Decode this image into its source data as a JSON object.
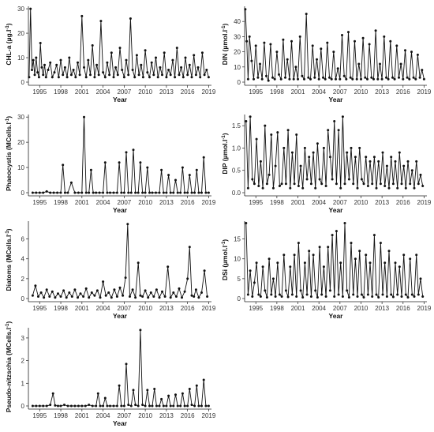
{
  "chart_data": [
    {
      "type": "line",
      "panel": "CHL-a",
      "ylabel": "CHL-a (µg.l",
      "ylabel_sup": "-1",
      "ylabel_end": ")",
      "xlabel": "Year",
      "xticks": [
        "1995",
        "1998",
        "2001",
        "2004",
        "2007",
        "2010",
        "2013",
        "2016",
        "2019"
      ],
      "yticks": [
        "0",
        "10",
        "20",
        "30"
      ],
      "ylim": [
        0,
        31
      ],
      "xlim": [
        1993.4,
        2019.4
      ],
      "x": [
        1993.5,
        1993.7,
        1993.9,
        1994.1,
        1994.3,
        1994.5,
        1994.7,
        1994.9,
        1995.1,
        1995.3,
        1995.5,
        1995.7,
        1995.9,
        1996.2,
        1996.5,
        1996.8,
        1997.1,
        1997.4,
        1997.7,
        1998.0,
        1998.3,
        1998.6,
        1998.9,
        1999.2,
        1999.5,
        1999.8,
        2000.1,
        2000.4,
        2000.7,
        2001.0,
        2001.3,
        2001.6,
        2001.9,
        2002.2,
        2002.5,
        2002.8,
        2003.1,
        2003.4,
        2003.7,
        2004.0,
        2004.3,
        2004.6,
        2004.9,
        2005.2,
        2005.5,
        2005.8,
        2006.1,
        2006.4,
        2006.7,
        2007.0,
        2007.3,
        2007.6,
        2007.9,
        2008.2,
        2008.5,
        2008.8,
        2009.1,
        2009.4,
        2009.7,
        2010.0,
        2010.3,
        2010.6,
        2010.9,
        2011.2,
        2011.5,
        2011.8,
        2012.1,
        2012.4,
        2012.7,
        2013.0,
        2013.3,
        2013.6,
        2013.9,
        2014.2,
        2014.5,
        2014.8,
        2015.1,
        2015.4,
        2015.7,
        2016.0,
        2016.3,
        2016.6,
        2016.9,
        2017.2,
        2017.5,
        2017.8,
        2018.1,
        2018.4,
        2018.7,
        2019.0
      ],
      "y": [
        2,
        30,
        5,
        9,
        3,
        10,
        4,
        2,
        16,
        6,
        3,
        7,
        2,
        5,
        8,
        2,
        4,
        7,
        2,
        9,
        3,
        6,
        2,
        10,
        3,
        5,
        2,
        8,
        3,
        27,
        6,
        2,
        9,
        3,
        15,
        2,
        7,
        3,
        25,
        4,
        2,
        8,
        3,
        12,
        2,
        6,
        3,
        14,
        5,
        2,
        9,
        3,
        26,
        5,
        2,
        11,
        3,
        7,
        2,
        13,
        4,
        2,
        8,
        3,
        10,
        2,
        6,
        3,
        12,
        2,
        5,
        3,
        9,
        2,
        14,
        3,
        6,
        2,
        10,
        3,
        7,
        2,
        11,
        3,
        6,
        2,
        12,
        3,
        5,
        2
      ]
    },
    {
      "type": "line",
      "panel": "DIN",
      "ylabel": "DIN (µmol.l",
      "ylabel_sup": "-1",
      "ylabel_end": ")",
      "xlabel": "Year",
      "xticks": [
        "1995",
        "1998",
        "2001",
        "2004",
        "2007",
        "2010",
        "2013",
        "2016",
        "2019"
      ],
      "yticks": [
        "0",
        "10",
        "20",
        "30",
        "40"
      ],
      "ylim": [
        0,
        50
      ],
      "xlim": [
        1993.4,
        2019.4
      ],
      "x": [
        1993.5,
        1993.7,
        1993.9,
        1994.1,
        1994.4,
        1994.7,
        1995.0,
        1995.3,
        1995.6,
        1995.9,
        1996.2,
        1996.5,
        1996.8,
        1997.1,
        1997.4,
        1997.7,
        1998.0,
        1998.3,
        1998.6,
        1998.9,
        1999.2,
        1999.5,
        1999.8,
        2000.1,
        2000.4,
        2000.7,
        2001.0,
        2001.3,
        2001.6,
        2001.9,
        2002.2,
        2002.5,
        2002.8,
        2003.1,
        2003.4,
        2003.7,
        2004.0,
        2004.3,
        2004.6,
        2004.9,
        2005.2,
        2005.5,
        2005.8,
        2006.1,
        2006.4,
        2006.7,
        2007.0,
        2007.3,
        2007.6,
        2007.9,
        2008.2,
        2008.5,
        2008.8,
        2009.1,
        2009.4,
        2009.7,
        2010.0,
        2010.3,
        2010.6,
        2010.9,
        2011.2,
        2011.5,
        2011.8,
        2012.1,
        2012.4,
        2012.7,
        2013.0,
        2013.3,
        2013.6,
        2013.9,
        2014.2,
        2014.5,
        2014.8,
        2015.1,
        2015.4,
        2015.7,
        2016.0,
        2016.3,
        2016.6,
        2016.9,
        2017.2,
        2017.5,
        2017.8,
        2018.1,
        2018.4,
        2018.7,
        2019.0
      ],
      "y": [
        48,
        27,
        2,
        30,
        14,
        2,
        24,
        3,
        12,
        2,
        26,
        4,
        1,
        25,
        3,
        2,
        20,
        5,
        2,
        28,
        3,
        15,
        2,
        27,
        2,
        10,
        2,
        30,
        4,
        2,
        45,
        3,
        2,
        24,
        3,
        15,
        2,
        22,
        3,
        2,
        26,
        3,
        2,
        20,
        2,
        9,
        2,
        31,
        4,
        2,
        33,
        3,
        2,
        27,
        2,
        12,
        2,
        29,
        3,
        2,
        25,
        3,
        2,
        34,
        2,
        12,
        2,
        30,
        3,
        2,
        27,
        3,
        2,
        24,
        3,
        12,
        2,
        21,
        3,
        2,
        20,
        3,
        2,
        18,
        3,
        8,
        2
      ]
    },
    {
      "type": "line",
      "panel": "Phaeocystis",
      "ylabel": "Phaeocystis (MCells.l",
      "ylabel_sup": "-1",
      "ylabel_end": ")",
      "xlabel": "Year",
      "xticks": [
        "1995",
        "1998",
        "2001",
        "2004",
        "2007",
        "2010",
        "2013",
        "2016",
        "2019"
      ],
      "yticks": [
        "0",
        "10",
        "20",
        "30"
      ],
      "ylim": [
        0,
        31
      ],
      "xlim": [
        1993.4,
        2019.4
      ],
      "x": [
        1994.0,
        1994.5,
        1995.0,
        1995.5,
        1996.0,
        1996.5,
        1997.0,
        1997.5,
        1998.0,
        1998.3,
        1998.6,
        1999.0,
        1999.5,
        2000.0,
        2000.5,
        2001.0,
        2001.3,
        2001.6,
        2002.0,
        2002.3,
        2002.6,
        2003.0,
        2003.5,
        2004.0,
        2004.3,
        2004.6,
        2005.0,
        2005.5,
        2006.0,
        2006.3,
        2006.6,
        2007.0,
        2007.3,
        2007.6,
        2008.0,
        2008.3,
        2008.6,
        2009.0,
        2009.3,
        2009.6,
        2010.0,
        2010.3,
        2010.6,
        2011.0,
        2011.5,
        2012.0,
        2012.3,
        2012.6,
        2013.0,
        2013.3,
        2013.6,
        2014.0,
        2014.3,
        2014.6,
        2015.0,
        2015.3,
        2015.6,
        2016.0,
        2016.3,
        2016.6,
        2017.0,
        2017.3,
        2017.6,
        2018.0,
        2018.3,
        2018.6,
        2019.0
      ],
      "y": [
        0,
        0,
        0,
        0,
        0.5,
        0,
        0,
        0,
        0,
        11,
        0,
        0,
        4,
        0,
        0,
        0,
        30,
        0,
        0,
        9,
        0,
        0,
        0,
        0,
        12,
        0,
        0,
        0,
        0,
        12,
        0,
        0,
        16,
        0,
        0,
        17,
        0,
        0,
        12,
        0,
        0,
        10,
        0,
        0,
        0,
        0,
        9,
        0,
        0,
        7,
        0,
        0,
        5,
        0,
        0,
        10,
        0,
        0,
        7,
        0,
        0,
        9,
        0,
        0,
        14,
        0,
        0
      ]
    },
    {
      "type": "line",
      "panel": "DIP",
      "ylabel": "DIP (µmol.l",
      "ylabel_sup": "-1",
      "ylabel_end": ")",
      "xlabel": "Year",
      "xticks": [
        "1995",
        "1998",
        "2001",
        "2004",
        "2007",
        "2010",
        "2013",
        "2016",
        "2019"
      ],
      "yticks": [
        "0.0",
        "0.5",
        "1.0",
        "1.5"
      ],
      "ylim": [
        0,
        1.75
      ],
      "xlim": [
        1993.4,
        2019.4
      ],
      "x": [
        1993.6,
        1993.9,
        1994.2,
        1994.5,
        1994.8,
        1995.1,
        1995.4,
        1995.7,
        1996.0,
        1996.3,
        1996.6,
        1996.9,
        1997.2,
        1997.5,
        1997.8,
        1998.1,
        1998.4,
        1998.7,
        1999.0,
        1999.3,
        1999.6,
        1999.9,
        2000.2,
        2000.5,
        2000.8,
        2001.1,
        2001.4,
        2001.7,
        2002.0,
        2002.3,
        2002.6,
        2002.9,
        2003.2,
        2003.5,
        2003.8,
        2004.1,
        2004.4,
        2004.7,
        2005.0,
        2005.3,
        2005.6,
        2005.9,
        2006.2,
        2006.5,
        2006.8,
        2007.1,
        2007.4,
        2007.7,
        2008.0,
        2008.3,
        2008.6,
        2008.9,
        2009.2,
        2009.5,
        2009.8,
        2010.1,
        2010.4,
        2010.7,
        2011.0,
        2011.3,
        2011.6,
        2011.9,
        2012.2,
        2012.5,
        2012.8,
        2013.1,
        2013.4,
        2013.7,
        2014.0,
        2014.3,
        2014.6,
        2014.9,
        2015.2,
        2015.5,
        2015.8,
        2016.1,
        2016.4,
        2016.7,
        2017.0,
        2017.3,
        2017.6,
        2017.9,
        2018.2,
        2018.5,
        2018.8
      ],
      "y": [
        1.6,
        0.1,
        1.7,
        0.3,
        0.2,
        1.2,
        0.15,
        0.7,
        0.1,
        1.5,
        0.2,
        0.4,
        1.3,
        0.1,
        0.6,
        1.35,
        0.15,
        0.2,
        1.0,
        0.2,
        1.4,
        0.1,
        0.9,
        0.2,
        1.3,
        0.15,
        0.6,
        0.1,
        1.0,
        0.3,
        0.8,
        0.2,
        0.9,
        0.1,
        1.1,
        0.3,
        0.2,
        1.0,
        0.15,
        1.4,
        0.8,
        0.3,
        1.6,
        0.2,
        1.4,
        0.1,
        1.7,
        0.2,
        0.9,
        0.3,
        1.0,
        0.2,
        0.8,
        0.1,
        1.0,
        0.3,
        0.2,
        0.8,
        0.15,
        0.7,
        0.2,
        0.8,
        0.1,
        0.7,
        0.2,
        0.9,
        0.15,
        0.6,
        0.1,
        0.8,
        0.2,
        0.7,
        0.1,
        0.9,
        0.2,
        0.6,
        0.1,
        0.7,
        0.2,
        0.5,
        0.1,
        0.7,
        0.2,
        0.4,
        0.15
      ]
    },
    {
      "type": "line",
      "panel": "Diatoms",
      "ylabel": "Diatoms (MCells.l",
      "ylabel_sup": "-1",
      "ylabel_end": ")",
      "xlabel": "Year",
      "xticks": [
        "1995",
        "1998",
        "2001",
        "2004",
        "2007",
        "2010",
        "2013",
        "2016",
        "2019"
      ],
      "yticks": [
        "0",
        "2",
        "4",
        "6"
      ],
      "ylim": [
        0,
        7.8
      ],
      "xlim": [
        1993.4,
        2019.4
      ],
      "x": [
        1994.0,
        1994.4,
        1994.8,
        1995.2,
        1995.6,
        1996.0,
        1996.4,
        1996.8,
        1997.2,
        1997.6,
        1998.0,
        1998.4,
        1998.8,
        1999.2,
        1999.6,
        2000.0,
        2000.4,
        2000.8,
        2001.2,
        2001.6,
        2002.0,
        2002.4,
        2002.8,
        2003.2,
        2003.6,
        2004.0,
        2004.4,
        2004.8,
        2005.2,
        2005.6,
        2006.0,
        2006.4,
        2006.8,
        2007.2,
        2007.5,
        2007.8,
        2008.2,
        2008.6,
        2009.0,
        2009.3,
        2009.6,
        2010.0,
        2010.4,
        2010.8,
        2011.2,
        2011.6,
        2012.0,
        2012.4,
        2012.8,
        2013.2,
        2013.6,
        2014.0,
        2014.4,
        2014.8,
        2015.2,
        2015.6,
        2016.0,
        2016.3,
        2016.6,
        2016.9,
        2017.2,
        2017.6,
        2018.0,
        2018.4,
        2018.8
      ],
      "y": [
        0.3,
        1.3,
        0.2,
        0.6,
        0.1,
        0.9,
        0.2,
        0.7,
        0.1,
        0.5,
        0.2,
        0.8,
        0.1,
        0.6,
        0.2,
        0.9,
        0.1,
        0.5,
        0.2,
        1.0,
        0.1,
        0.6,
        0.3,
        0.8,
        0.1,
        1.7,
        0.3,
        0.6,
        0.1,
        0.9,
        0.2,
        1.1,
        0.3,
        2.1,
        7.5,
        0.2,
        0.9,
        0.1,
        3.6,
        0.3,
        0.2,
        0.8,
        0.1,
        0.6,
        0.2,
        0.9,
        0.1,
        0.7,
        0.2,
        3.2,
        0.1,
        0.6,
        0.2,
        1.0,
        0.1,
        0.7,
        2.0,
        5.2,
        0.3,
        0.2,
        0.9,
        0.1,
        0.6,
        2.8,
        0.2
      ]
    },
    {
      "type": "line",
      "panel": "DSi",
      "ylabel": "DSi (µmol.l",
      "ylabel_sup": "-1",
      "ylabel_end": ")",
      "xlabel": "Year",
      "xticks": [
        "1995",
        "1998",
        "2001",
        "2004",
        "2007",
        "2010",
        "2013",
        "2016",
        "2019"
      ],
      "yticks": [
        "0",
        "5",
        "10",
        "15"
      ],
      "ylim": [
        0,
        19.5
      ],
      "xlim": [
        1993.4,
        2019.4
      ],
      "x": [
        1993.6,
        1993.9,
        1994.2,
        1994.5,
        1994.8,
        1995.1,
        1995.4,
        1995.7,
        1996.0,
        1996.3,
        1996.6,
        1996.9,
        1997.2,
        1997.5,
        1997.8,
        1998.1,
        1998.4,
        1998.7,
        1999.0,
        1999.3,
        1999.6,
        1999.9,
        2000.2,
        2000.5,
        2000.8,
        2001.1,
        2001.4,
        2001.7,
        2002.0,
        2002.3,
        2002.6,
        2002.9,
        2003.2,
        2003.5,
        2003.8,
        2004.1,
        2004.4,
        2004.7,
        2005.0,
        2005.3,
        2005.6,
        2005.9,
        2006.2,
        2006.5,
        2006.8,
        2007.1,
        2007.4,
        2007.7,
        2008.0,
        2008.3,
        2008.6,
        2008.9,
        2009.2,
        2009.5,
        2009.8,
        2010.1,
        2010.4,
        2010.7,
        2011.0,
        2011.3,
        2011.6,
        2011.9,
        2012.2,
        2012.5,
        2012.8,
        2013.1,
        2013.4,
        2013.7,
        2014.0,
        2014.3,
        2014.6,
        2014.9,
        2015.2,
        2015.5,
        2015.8,
        2016.1,
        2016.4,
        2016.7,
        2017.0,
        2017.3,
        2017.6,
        2017.9,
        2018.2,
        2018.5,
        2018.8
      ],
      "y": [
        19,
        1,
        7,
        0.5,
        4,
        9,
        1,
        0.5,
        8,
        2,
        0.3,
        10,
        1,
        5,
        0.5,
        9,
        1,
        0.5,
        11,
        2,
        0.4,
        8,
        1,
        11,
        0.5,
        14,
        2,
        0.3,
        9,
        1,
        12,
        0.5,
        11,
        2,
        0.3,
        13,
        1,
        8,
        0.5,
        13,
        2,
        16,
        0.5,
        17,
        1,
        9,
        0.5,
        19,
        2,
        0.3,
        14,
        1,
        10,
        0.5,
        12,
        1,
        0.3,
        11,
        1,
        9,
        0.5,
        16,
        1,
        0.3,
        14,
        1,
        9,
        0.5,
        12,
        1,
        0.4,
        9,
        1,
        8,
        0.5,
        11,
        1,
        0.3,
        10,
        1,
        0.5,
        11,
        1,
        5,
        0.5
      ]
    },
    {
      "type": "line",
      "panel": "Pseudo-nitzschia",
      "ylabel": "Pseudo-nitzschia (MCells.l",
      "ylabel_sup": "-1",
      "ylabel_end": ")",
      "xlabel": "Year",
      "xticks": [
        "1995",
        "1998",
        "2001",
        "2004",
        "2007",
        "2010",
        "2013",
        "2016",
        "2019"
      ],
      "yticks": [
        "0",
        "1",
        "2",
        "3"
      ],
      "ylim": [
        0,
        3.45
      ],
      "xlim": [
        1993.4,
        2019.4
      ],
      "x": [
        1994.0,
        1994.5,
        1995.0,
        1995.5,
        1996.0,
        1996.5,
        1996.9,
        1997.2,
        1997.6,
        1998.0,
        1998.5,
        1999.0,
        1999.5,
        2000.0,
        2000.5,
        2001.0,
        2001.5,
        2002.0,
        2002.5,
        2003.0,
        2003.3,
        2003.6,
        2004.0,
        2004.3,
        2004.6,
        2005.0,
        2005.5,
        2006.0,
        2006.3,
        2006.6,
        2007.0,
        2007.3,
        2007.6,
        2008.0,
        2008.3,
        2008.6,
        2009.0,
        2009.3,
        2009.6,
        2010.0,
        2010.3,
        2010.6,
        2011.0,
        2011.3,
        2011.6,
        2012.0,
        2012.3,
        2012.6,
        2013.0,
        2013.3,
        2013.6,
        2014.0,
        2014.3,
        2014.6,
        2015.0,
        2015.3,
        2015.6,
        2016.0,
        2016.3,
        2016.6,
        2017.0,
        2017.3,
        2017.6,
        2018.0,
        2018.3,
        2018.6,
        2019.0
      ],
      "y": [
        0,
        0,
        0,
        0,
        0,
        0.05,
        0.55,
        0.02,
        0,
        0,
        0.05,
        0,
        0,
        0,
        0,
        0,
        0,
        0.05,
        0,
        0,
        0.55,
        0,
        0,
        0.35,
        0,
        0,
        0,
        0,
        0.9,
        0,
        0,
        1.85,
        0.05,
        0,
        0.7,
        0.05,
        0,
        3.35,
        0.05,
        0,
        0.7,
        0,
        0,
        0.75,
        0,
        0,
        0.3,
        0,
        0,
        0.45,
        0,
        0,
        0.5,
        0,
        0,
        0.55,
        0,
        0,
        0.75,
        0.05,
        0,
        0.9,
        0,
        0,
        1.15,
        0,
        0
      ]
    }
  ]
}
